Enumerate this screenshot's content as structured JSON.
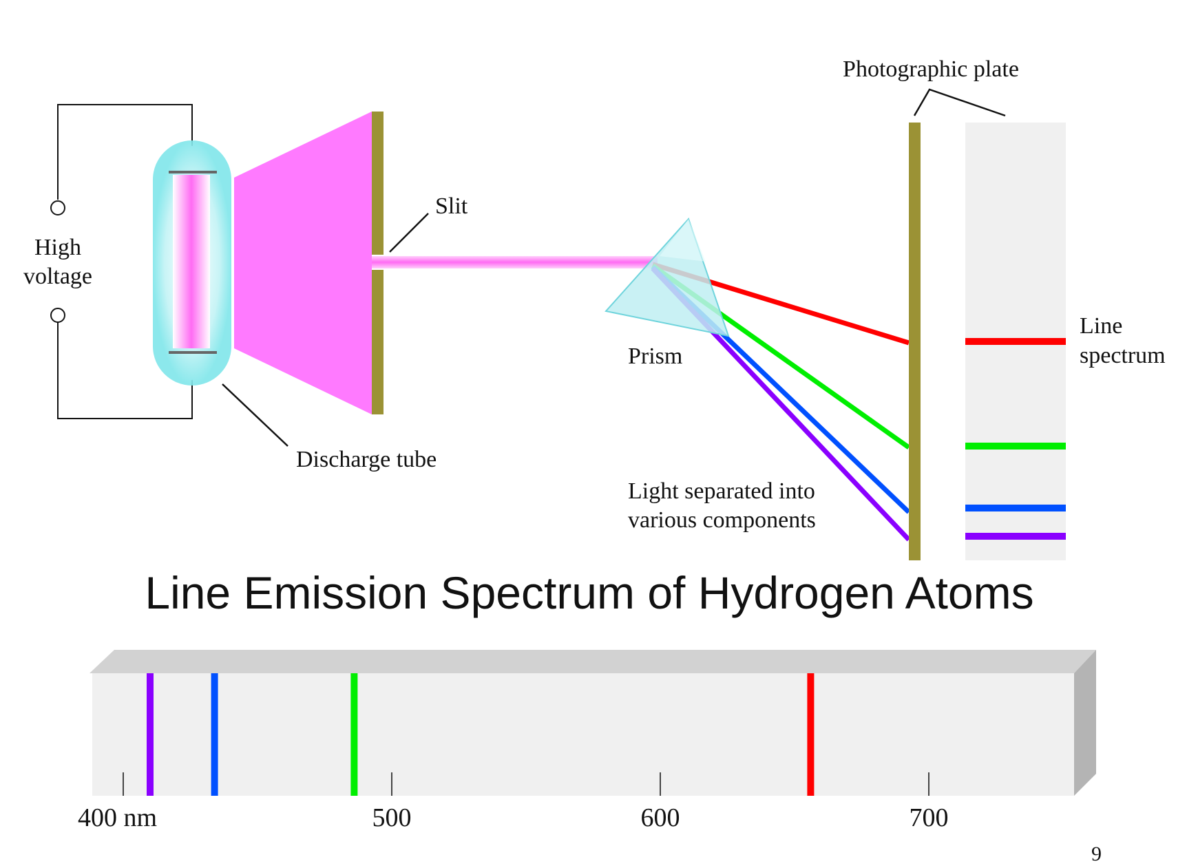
{
  "labels": {
    "high_voltage_1": "High",
    "high_voltage_2": "voltage",
    "slit": "Slit",
    "discharge_tube": "Discharge tube",
    "prism": "Prism",
    "light_separated_1": "Light separated into",
    "light_separated_2": "various components",
    "photographic_plate": "Photographic plate",
    "line_spectrum_1": "Line",
    "line_spectrum_2": "spectrum"
  },
  "title": "Line Emission Spectrum of Hydrogen Atoms",
  "page_number": "9",
  "spectrum": {
    "axis_min_nm": 390,
    "axis_max_nm": 782,
    "ticks": [
      {
        "value": 400,
        "label": "400 nm"
      },
      {
        "value": 500,
        "label": "500"
      },
      {
        "value": 600,
        "label": "600"
      },
      {
        "value": 700,
        "label": "700"
      }
    ],
    "lines": [
      {
        "name": "violet",
        "wavelength_nm": 410,
        "color": "#8a00ff"
      },
      {
        "name": "blue",
        "wavelength_nm": 434,
        "color": "#0050ff"
      },
      {
        "name": "green",
        "wavelength_nm": 486,
        "color": "#00ee00"
      },
      {
        "name": "red",
        "wavelength_nm": 656,
        "color": "#ff0000"
      }
    ]
  },
  "colors": {
    "discharge_pink": "#ff7aff",
    "tube_glow": "#7fe6ea",
    "plate_olive": "#9b9235",
    "plate_strip": "#f0f0f0",
    "prism": "#bfeef2"
  }
}
